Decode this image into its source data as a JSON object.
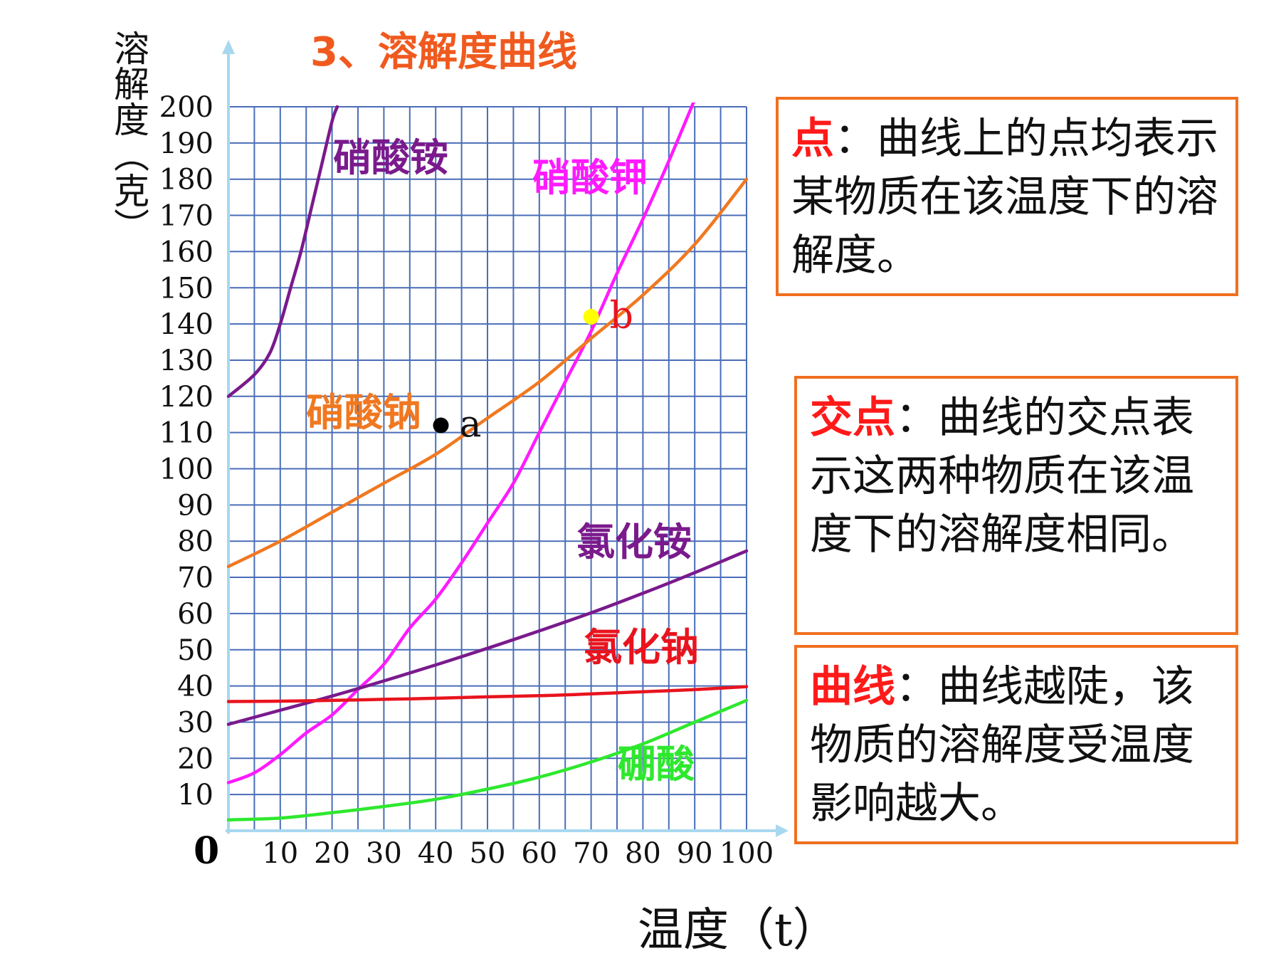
{
  "slide": {
    "title": "3、溶解度曲线",
    "origin_label": "0"
  },
  "notes": [
    {
      "term": "点",
      "text": "：曲线上的点均表示某物质在该温度下的溶解度。"
    },
    {
      "term": "交点",
      "text": "：曲线的交点表示这两种物质在该温度下的溶解度相同。"
    },
    {
      "term": "曲线",
      "text": "：曲线越陡，该物质的溶解度受温度影响越大。"
    }
  ],
  "chart_data": {
    "type": "line",
    "title": "3、溶解度曲线",
    "xlabel": "温度（t）",
    "ylabel": "溶解度（克）",
    "xlim": [
      0,
      100
    ],
    "ylim": [
      0,
      200
    ],
    "grid": true,
    "x_ticks": [
      "10",
      "20",
      "30",
      "40",
      "50",
      "60",
      "70",
      "80",
      "90",
      "100"
    ],
    "y_ticks": [
      "200",
      "190",
      "180",
      "170",
      "160",
      "150",
      "140",
      "130",
      "120",
      "110",
      "100",
      "90",
      "80",
      "70",
      "60",
      "50",
      "40",
      "30",
      "20",
      "10"
    ],
    "series": [
      {
        "name": "硝酸铵",
        "color": "#7a1a8c",
        "x": [
          0,
          5,
          8,
          10,
          12,
          14,
          16,
          18,
          20,
          21
        ],
        "y": [
          120,
          126,
          132,
          140,
          150,
          160,
          172,
          184,
          196,
          200
        ]
      },
      {
        "name": "硝酸钾",
        "color": "#ff1aff",
        "x": [
          0,
          5,
          10,
          15,
          20,
          25,
          30,
          35,
          40,
          45,
          50,
          55,
          60,
          65,
          70,
          75,
          80,
          85,
          90
        ],
        "y": [
          13.3,
          16,
          21,
          27,
          32,
          39,
          46,
          56,
          64,
          74,
          85,
          96,
          110,
          124,
          138,
          154,
          169,
          185,
          202
        ]
      },
      {
        "name": "硝酸钠",
        "color": "#f07820",
        "x": [
          0,
          10,
          20,
          30,
          40,
          50,
          60,
          70,
          80,
          90,
          100
        ],
        "y": [
          73,
          80,
          88,
          96,
          104,
          114,
          124,
          136,
          148,
          162,
          180
        ]
      },
      {
        "name": "氯化铵",
        "color": "#7a1a8c",
        "x": [
          0,
          10,
          20,
          30,
          40,
          50,
          60,
          70,
          80,
          90,
          100
        ],
        "y": [
          29.4,
          33.3,
          37.2,
          41.4,
          45.8,
          50.4,
          55.2,
          60.2,
          65.6,
          71.3,
          77.3
        ]
      },
      {
        "name": "氯化钠",
        "color": "#e8141e",
        "x": [
          0,
          10,
          20,
          30,
          40,
          50,
          60,
          70,
          80,
          90,
          100
        ],
        "y": [
          35.7,
          35.8,
          36.0,
          36.3,
          36.6,
          37.0,
          37.3,
          37.8,
          38.4,
          39.0,
          39.8
        ]
      },
      {
        "name": "硼酸",
        "color": "#2ee82e",
        "x": [
          0,
          10,
          20,
          30,
          40,
          50,
          60,
          70,
          80,
          90,
          100
        ],
        "y": [
          3,
          3.5,
          5,
          6.7,
          8.7,
          11.5,
          14.8,
          19,
          24,
          30,
          36
        ]
      }
    ],
    "annotations": [
      {
        "label": "a",
        "x": 41,
        "y": 112,
        "color": "#000000"
      },
      {
        "label": "b",
        "x": 70,
        "y": 142,
        "color": "#ffff00"
      }
    ]
  }
}
